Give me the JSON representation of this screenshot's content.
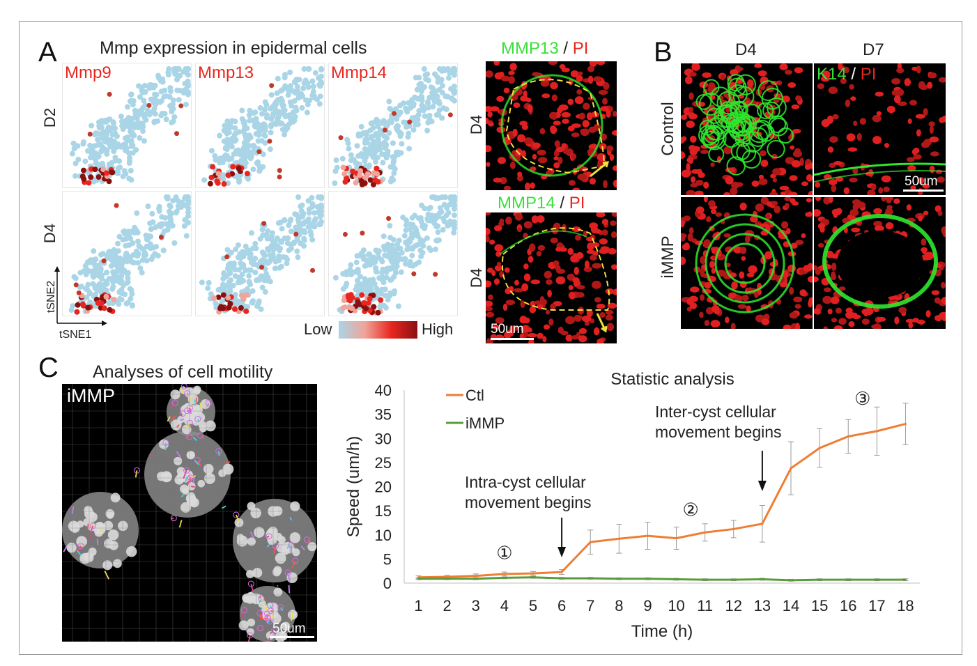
{
  "panel_A": {
    "letter": "A",
    "title": "Mmp expression in epidermal cells",
    "tsne_labels": [
      "Mmp9",
      "Mmp13",
      "Mmp14"
    ],
    "rows": [
      "D2",
      "D4"
    ],
    "axis_x": "tSNE1",
    "axis_y": "tSNE2",
    "legend_low": "Low",
    "legend_high": "High",
    "micro_top": {
      "stain1": "MMP13",
      "sep": "/",
      "stain2": "PI",
      "row": "D4"
    },
    "micro_bottom": {
      "stain1": "MMP14",
      "sep": "/",
      "stain2": "PI",
      "row": "D4",
      "scale": "50um"
    }
  },
  "panel_B": {
    "letter": "B",
    "cols": [
      "D4",
      "D7"
    ],
    "rows": [
      "Control",
      "iMMP"
    ],
    "stain1": "K14",
    "sep": "/",
    "stain2": "PI",
    "scale": "50um"
  },
  "panel_C": {
    "letter": "C",
    "title": "Analyses of cell motility",
    "image_label": "iMMP",
    "scale": "50um"
  },
  "colors": {
    "ctl": "#ef7d32",
    "immp": "#5b9b3c",
    "tsne_low": "#a9d5e6",
    "tsne_high": "#8a1010"
  },
  "chart_data": {
    "type": "line",
    "title": "Statistic analysis",
    "xlabel": "Time (h)",
    "ylabel": "Speed (um/h)",
    "x": [
      1,
      2,
      3,
      4,
      5,
      6,
      7,
      8,
      9,
      10,
      11,
      12,
      13,
      14,
      15,
      16,
      17,
      18
    ],
    "ylim": [
      0,
      40
    ],
    "yticks": [
      0,
      5,
      10,
      15,
      20,
      25,
      30,
      35,
      40
    ],
    "series": [
      {
        "name": "Ctl",
        "color": "#ef7d32",
        "values": [
          1.2,
          1.3,
          1.5,
          1.9,
          2.0,
          2.3,
          8.5,
          9.2,
          9.8,
          9.3,
          10.5,
          11.2,
          12.3,
          23.8,
          28.0,
          30.4,
          31.5,
          33.0
        ],
        "errors": [
          0.3,
          0.3,
          0.4,
          0.4,
          0.4,
          0.5,
          2.5,
          3.0,
          2.8,
          2.3,
          1.8,
          1.8,
          3.8,
          5.5,
          4.0,
          3.5,
          5.0,
          4.3
        ]
      },
      {
        "name": "iMMP",
        "color": "#5b9b3c",
        "values": [
          0.9,
          0.9,
          0.9,
          1.1,
          1.2,
          1.0,
          1.0,
          0.9,
          0.9,
          0.8,
          0.7,
          0.7,
          0.8,
          0.6,
          0.7,
          0.7,
          0.7,
          0.7
        ],
        "errors": [
          0.2,
          0.2,
          0.2,
          0.2,
          0.2,
          0.2,
          0.2,
          0.2,
          0.2,
          0.2,
          0.2,
          0.2,
          0.2,
          0.2,
          0.2,
          0.2,
          0.2,
          0.2
        ]
      }
    ],
    "annotations": [
      {
        "text": [
          "Intra-cyst cellular",
          "movement begins"
        ],
        "x": 6,
        "arrow": true
      },
      {
        "text": [
          "Inter-cyst cellular",
          "movement begins"
        ],
        "x": 13,
        "arrow": true
      },
      {
        "text": [
          "①"
        ],
        "x": 4,
        "y": 6.3
      },
      {
        "text": [
          "②"
        ],
        "x": 10.5,
        "y": 15.2
      },
      {
        "text": [
          "③"
        ],
        "x": 16.5,
        "y": 38.3
      }
    ]
  }
}
